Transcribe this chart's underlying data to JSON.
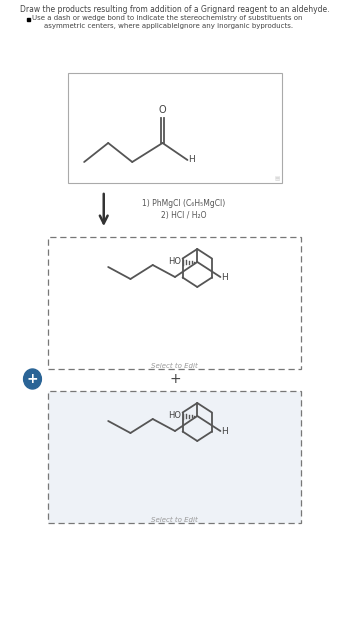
{
  "title1": "Draw the products resulting from addition of a Grignard reagent to an aldehyde.",
  "title2a": "Use a dash or wedge bond to indicate the stereochemistry of substituents on",
  "title2b": "asymmetric centers, where applicableIgnore any inorganic byproducts.",
  "reagent1": "1) PhMgCl (C₆H₅MgCl)",
  "reagent2": "2) HCl / H₂O",
  "select_edit": "Select to Edit",
  "line_color": "#555555",
  "text_color": "#444444",
  "box_edge": "#aaaaaa",
  "dash_box_edge": "#777777",
  "blue_circle_color": "#2a6496",
  "bg_white": "#ffffff",
  "bg_product2": "#eef2f7",
  "gray_icon": "#cccccc",
  "reagent_text_color": "#555555",
  "select_edit_color": "#999999"
}
